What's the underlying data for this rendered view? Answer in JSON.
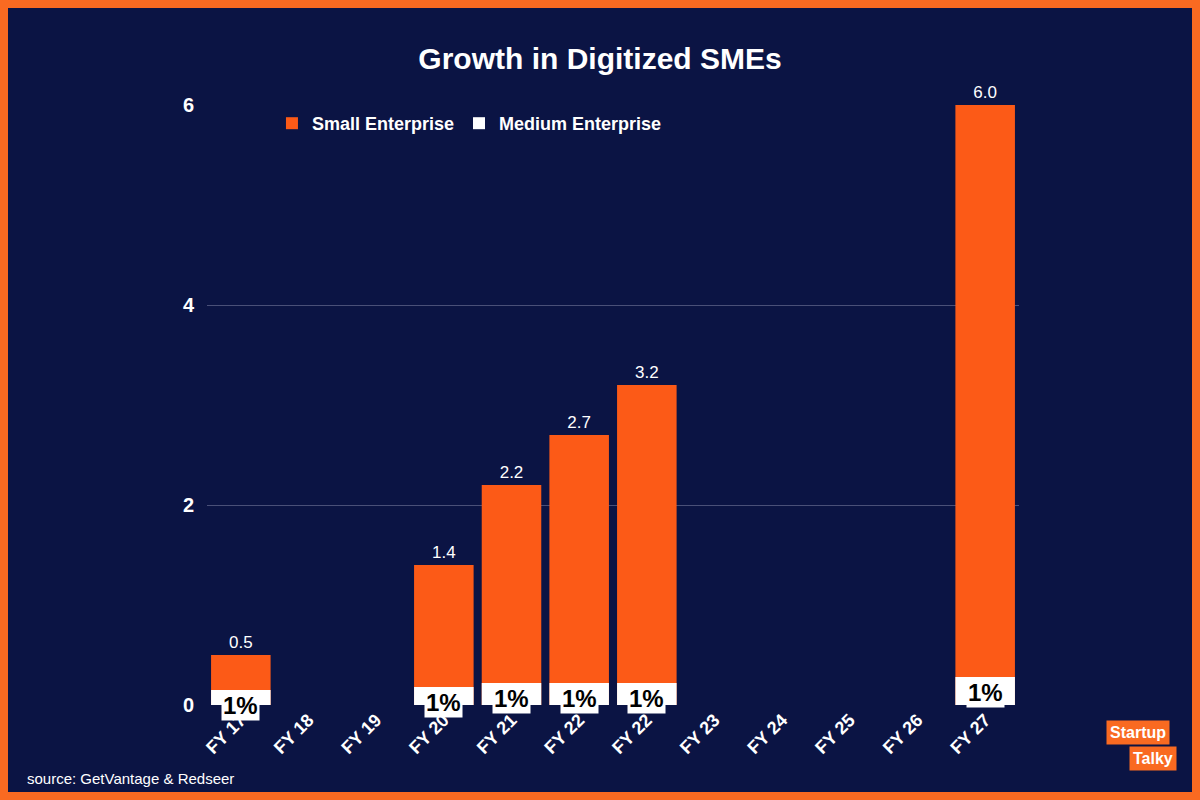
{
  "chart_data": {
    "type": "bar",
    "title": "Growth in Digitized SMEs",
    "categories": [
      "FY 17",
      "FY 18",
      "FY 19",
      "FY 20",
      "FY 21",
      "FY 22",
      "FY 22",
      "FY 23",
      "FY 24",
      "FY 25",
      "FY 26",
      "FY 27"
    ],
    "series": [
      {
        "name": "Small Enterprise",
        "color": "#fc5a17",
        "values": [
          0.5,
          null,
          null,
          1.4,
          2.2,
          2.7,
          3.2,
          null,
          null,
          null,
          null,
          6.0
        ],
        "value_labels": [
          "0.5",
          null,
          null,
          "1.4",
          "2.2",
          "2.7",
          "3.2",
          null,
          null,
          null,
          null,
          "6.0"
        ]
      },
      {
        "name": "Medium Enterprise",
        "color": "#ffffff",
        "values": [
          0.15,
          null,
          null,
          0.18,
          0.22,
          0.22,
          0.22,
          null,
          null,
          null,
          null,
          0.28
        ]
      }
    ],
    "annotations": [
      {
        "category": 0,
        "text": "1%"
      },
      {
        "category": 3,
        "text": "1%"
      },
      {
        "category": 4,
        "text": "1%"
      },
      {
        "category": 5,
        "text": "1%"
      },
      {
        "category": 6,
        "text": "1%"
      },
      {
        "category": 11,
        "text": "1%"
      }
    ],
    "ylim": [
      0,
      6
    ],
    "yticks": [
      0,
      2,
      4,
      6
    ],
    "grid": true,
    "legend": "top left",
    "data_labels": true,
    "source": "source: GetVantage & Redseer",
    "logo": [
      "Startup",
      "Talky"
    ]
  }
}
